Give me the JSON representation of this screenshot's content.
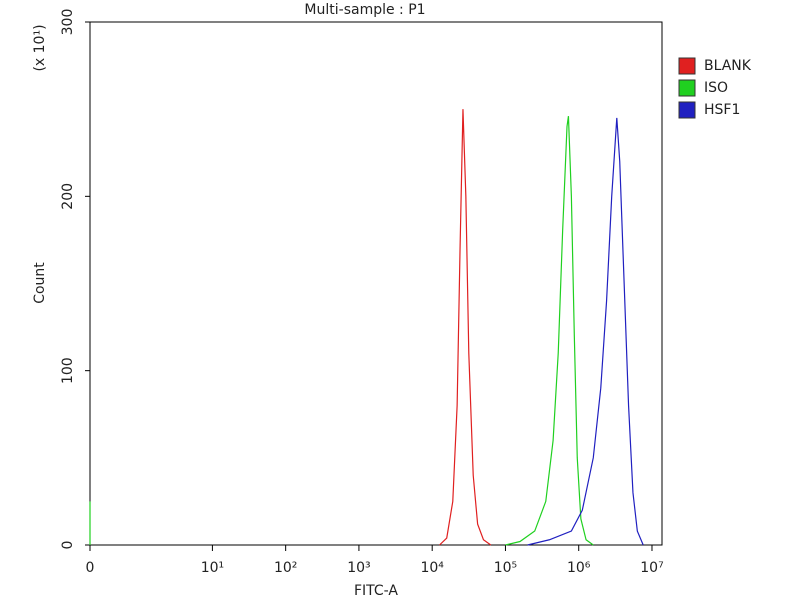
{
  "chart_data": {
    "type": "line",
    "title": "Multi-sample : P1",
    "xlabel": "FITC-A",
    "ylabel": "Count",
    "y_multiplier": "(x 10¹)",
    "xscale": "biexponential",
    "xlim": [
      0,
      13700000
    ],
    "xticks": [
      0,
      {
        "value": 10,
        "label": "10¹"
      },
      {
        "value": 100,
        "label": "10²"
      },
      {
        "value": 1000,
        "label": "10³"
      },
      {
        "value": 10000,
        "label": "10⁴"
      },
      {
        "value": 100000,
        "label": "10⁵"
      },
      {
        "value": 1000000,
        "label": "10⁶"
      },
      {
        "value": 10000000,
        "label": "10⁷"
      }
    ],
    "ylim": [
      0,
      300
    ],
    "yticks": [
      0,
      100,
      200,
      300
    ],
    "grid": false,
    "legend": "right",
    "series": [
      {
        "name": "BLANK",
        "color": "#e02020",
        "x": [
          12600,
          15800,
          19100,
          21900,
          24000,
          26300,
          28800,
          31600,
          36300,
          41700,
          50100,
          63100
        ],
        "values": [
          0,
          4,
          25,
          80,
          170,
          250,
          200,
          110,
          40,
          12,
          3,
          0
        ]
      },
      {
        "name": "ISO",
        "color": "#20d020",
        "x": [
          0,
          0,
          1,
          100000,
          158000,
          251000,
          355000,
          447000,
          525000,
          603000,
          692000,
          724000,
          794000,
          871000,
          955000,
          1070000,
          1260000,
          1580000
        ],
        "values": [
          0,
          25,
          null,
          0,
          2,
          8,
          25,
          60,
          110,
          180,
          240,
          246,
          200,
          120,
          50,
          15,
          3,
          0
        ]
      },
      {
        "name": "HSF1",
        "color": "#2020c0",
        "x": [
          200000,
          398000,
          794000,
          1120000,
          1580000,
          2000000,
          2400000,
          2820000,
          3310000,
          3630000,
          4170000,
          4790000,
          5500000,
          6310000,
          7590000
        ],
        "values": [
          0,
          3,
          8,
          20,
          50,
          90,
          140,
          200,
          245,
          220,
          150,
          80,
          30,
          8,
          0
        ]
      }
    ]
  }
}
